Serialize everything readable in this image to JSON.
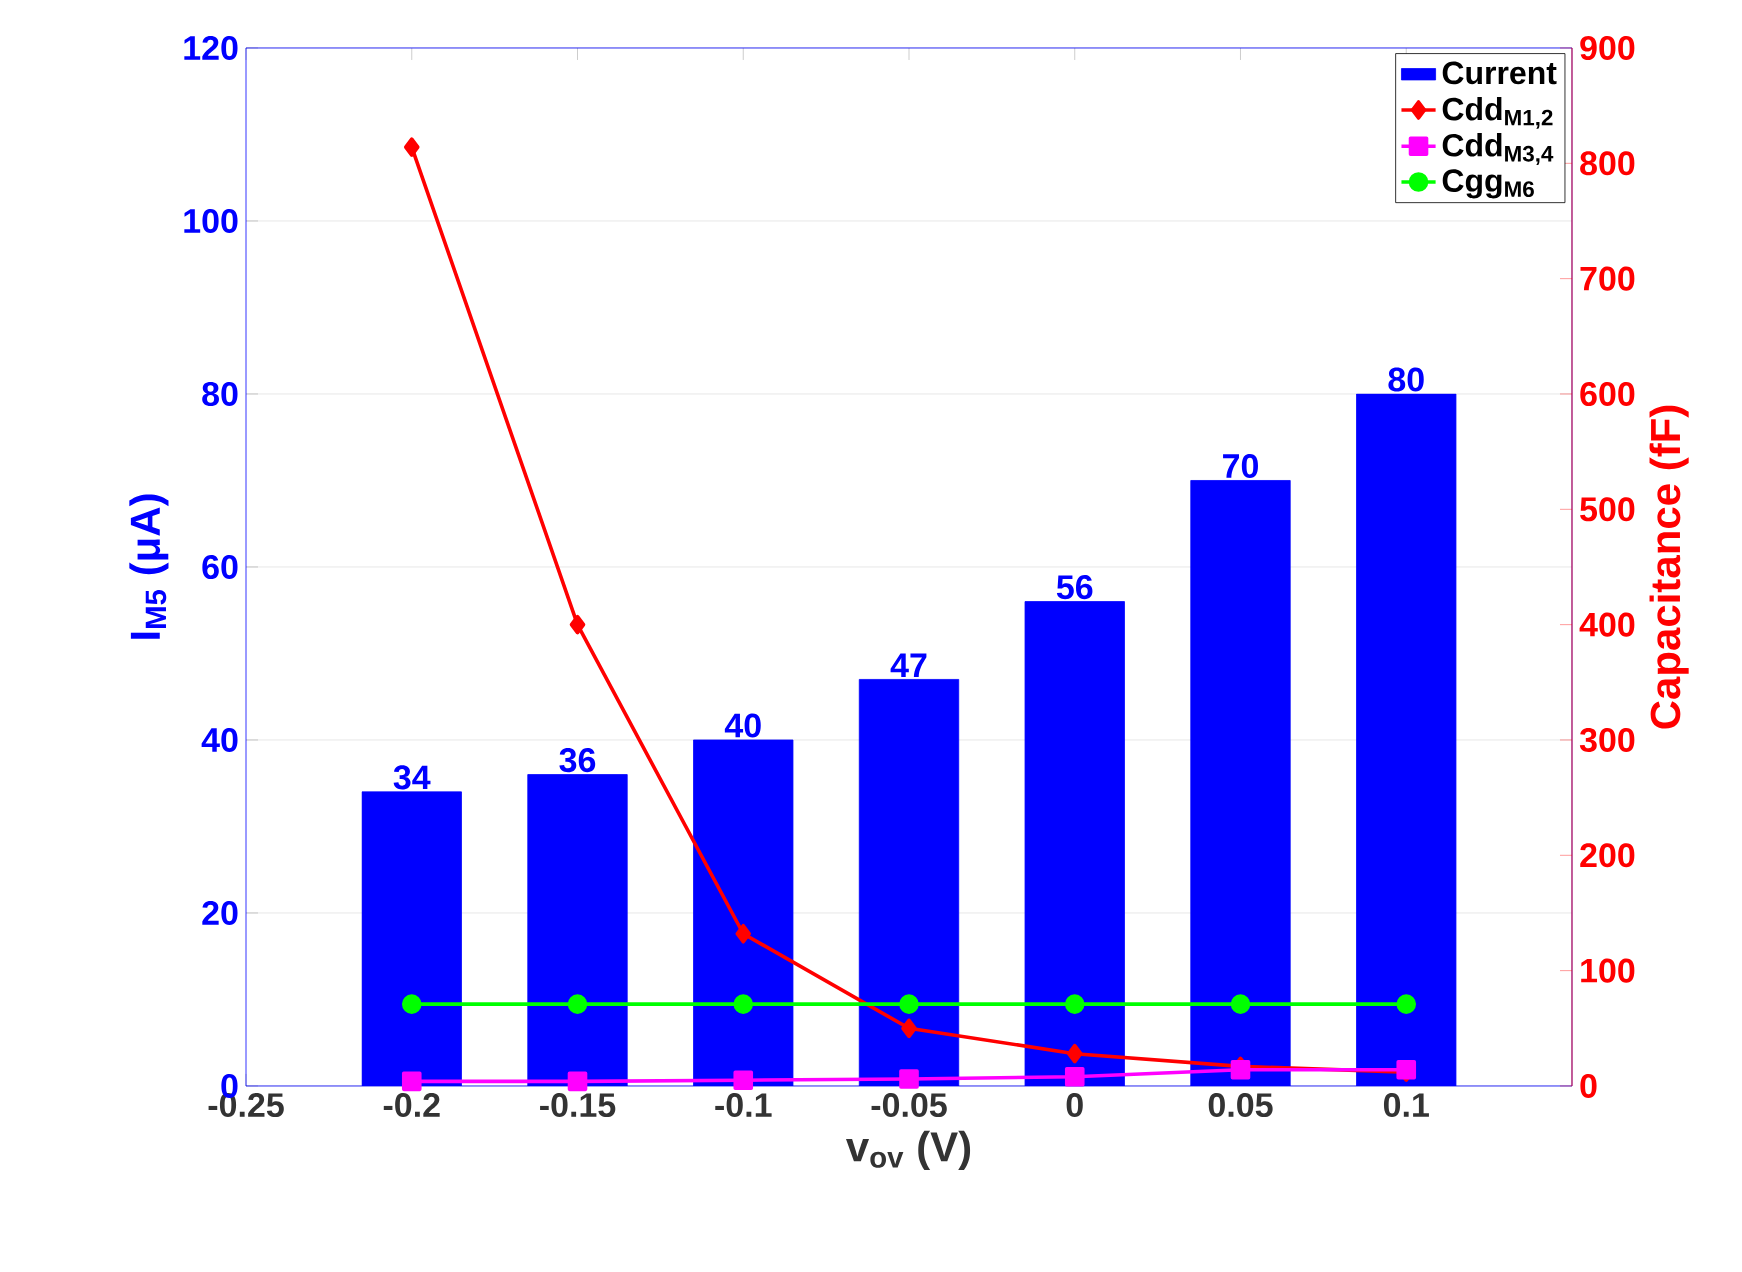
{
  "chart_data": {
    "type": "bar",
    "x": [
      -0.2,
      -0.15,
      -0.1,
      -0.05,
      0,
      0.05,
      0.1
    ],
    "xlabel": "v$_{ov}$ (V)",
    "ylabel": "I$_{M5}$ (μA)",
    "y2label": "Capacitance (fF)",
    "xlim": [
      -0.25,
      0.15
    ],
    "xticks": [
      -0.25,
      -0.2,
      -0.15,
      -0.1,
      -0.05,
      0,
      0.05,
      0.1
    ],
    "ylim": [
      0,
      120
    ],
    "yticks": [
      0,
      20,
      40,
      60,
      80,
      100,
      120
    ],
    "y2lim": [
      0,
      900
    ],
    "y2ticks": [
      0,
      100,
      200,
      300,
      400,
      500,
      600,
      700,
      800,
      900
    ],
    "grid": "y",
    "legend": "top right",
    "series": [
      {
        "name": "Current",
        "color": "#0000ff",
        "values": [
          34,
          36,
          40,
          47,
          56,
          70,
          80
        ],
        "value_labels": [
          "34",
          "36",
          "40",
          "47",
          "56",
          "70",
          "80"
        ]
      },
      {
        "name": "Cdd$_{M1,2}$",
        "type": "line",
        "axis": "y2",
        "color": "#ff0000",
        "marker": "diamond",
        "values": [
          814,
          400,
          132,
          50,
          28,
          17,
          12
        ]
      },
      {
        "name": "Cdd$_{M3,4}$",
        "type": "line",
        "axis": "y2",
        "color": "#ff00ff",
        "marker": "square",
        "values": [
          4,
          4,
          5,
          6,
          8,
          14,
          14
        ]
      },
      {
        "name": "Cgg$_{M6}$",
        "type": "line",
        "axis": "y2",
        "color": "#00ff00",
        "marker": "circle",
        "values": [
          71,
          71,
          71,
          71,
          71,
          71,
          71
        ]
      }
    ]
  }
}
